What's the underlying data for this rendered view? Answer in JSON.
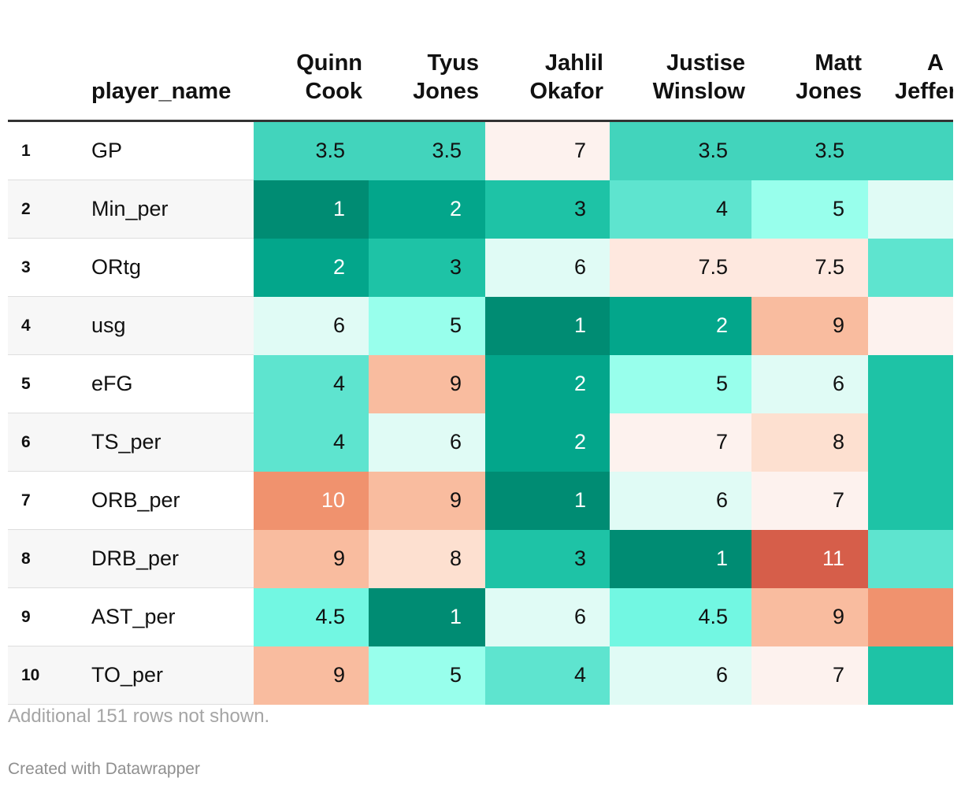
{
  "chart_data": {
    "type": "table",
    "row_label_header": "player_name",
    "players": [
      {
        "first": "Quinn",
        "last": "Cook"
      },
      {
        "first": "Tyus",
        "last": "Jones"
      },
      {
        "first": "Jahlil",
        "last": "Okafor"
      },
      {
        "first": "Justise",
        "last": "Winslow"
      },
      {
        "first": "Matt",
        "last": "Jones"
      },
      {
        "first": "A",
        "last": "Jeffer"
      }
    ],
    "rows": [
      {
        "rank": "1",
        "stat": "GP",
        "values": [
          "3.5",
          "3.5",
          "7",
          "3.5",
          "3.5",
          ""
        ],
        "colors": [
          "#42d4bc",
          "#42d4bc",
          "#fdf2ee",
          "#42d4bc",
          "#42d4bc",
          "#42d4bc"
        ]
      },
      {
        "rank": "2",
        "stat": "Min_per",
        "values": [
          "1",
          "2",
          "3",
          "4",
          "5",
          ""
        ],
        "colors": [
          "#008c73",
          "#03a68b",
          "#1ec3a6",
          "#5ee4cf",
          "#98ffec",
          "#e0fbf5"
        ]
      },
      {
        "rank": "3",
        "stat": "ORtg",
        "values": [
          "2",
          "3",
          "6",
          "7.5",
          "7.5",
          ""
        ],
        "colors": [
          "#03a68b",
          "#1ec3a6",
          "#e0fbf5",
          "#fee8df",
          "#fee8df",
          "#5ee4cf"
        ]
      },
      {
        "rank": "4",
        "stat": "usg",
        "values": [
          "6",
          "5",
          "1",
          "2",
          "9",
          ""
        ],
        "colors": [
          "#e0fbf5",
          "#98ffec",
          "#008c73",
          "#03a68b",
          "#f9bc9f",
          "#fdf2ee"
        ]
      },
      {
        "rank": "5",
        "stat": "eFG",
        "values": [
          "4",
          "9",
          "2",
          "5",
          "6",
          ""
        ],
        "colors": [
          "#5ee4cf",
          "#f9bc9f",
          "#03a68b",
          "#98ffec",
          "#e0fbf5",
          "#1ec3a6"
        ]
      },
      {
        "rank": "6",
        "stat": "TS_per",
        "values": [
          "4",
          "6",
          "2",
          "7",
          "8",
          ""
        ],
        "colors": [
          "#5ee4cf",
          "#e0fbf5",
          "#03a68b",
          "#fdf2ee",
          "#fde0d0",
          "#1ec3a6"
        ]
      },
      {
        "rank": "7",
        "stat": "ORB_per",
        "values": [
          "10",
          "9",
          "1",
          "6",
          "7",
          ""
        ],
        "colors": [
          "#f0926e",
          "#f9bc9f",
          "#008c73",
          "#e0fbf5",
          "#fdf2ee",
          "#1ec3a6"
        ]
      },
      {
        "rank": "8",
        "stat": "DRB_per",
        "values": [
          "9",
          "8",
          "3",
          "1",
          "11",
          ""
        ],
        "colors": [
          "#f9bc9f",
          "#fde0d0",
          "#1ec3a6",
          "#008c73",
          "#d65e4a",
          "#5ee4cf"
        ]
      },
      {
        "rank": "9",
        "stat": "AST_per",
        "values": [
          "4.5",
          "1",
          "6",
          "4.5",
          "9",
          ""
        ],
        "colors": [
          "#72f7e2",
          "#008c73",
          "#e0fbf5",
          "#72f7e2",
          "#f9bc9f",
          "#f0926e"
        ]
      },
      {
        "rank": "10",
        "stat": "TO_per",
        "values": [
          "9",
          "5",
          "4",
          "6",
          "7",
          ""
        ],
        "colors": [
          "#f9bc9f",
          "#98ffec",
          "#5ee4cf",
          "#e0fbf5",
          "#fdf2ee",
          "#1ec3a6"
        ]
      }
    ],
    "footnote": "Additional 151 rows not shown.",
    "credit": "Created with Datawrapper"
  }
}
